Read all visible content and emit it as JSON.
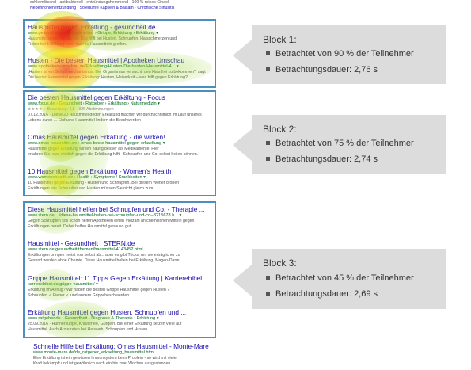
{
  "serp": {
    "top_snippet": [
      "schleimlösend · antibakteriell · entzündungshemmend · 100 % reines Cineol",
      "Nebenhöhlenentzündung · Soledum® Kapseln & Balsam · Chronische Sinusitis"
    ],
    "block1": [
      {
        "title": "Hausmittel gegen Erkältung - gesundheit.de",
        "url": "www.gesundheit.de › Krankheiten › Grippe, Erkältung › Erkältung",
        "desc": [
          "Hausmittel gegen Erkältung: Das hilft bei Husten, Schnupfen, Halsschmerzen und",
          "Fieber bei Erkältung kann man zu Hausmitteln greifen."
        ]
      },
      {
        "title": "Husten - Die besten Hausmittel | Apotheken Umschau",
        "url": "www.apotheken-umschau.de/Erkaeltung/Husten-Die-besten-Hausmittel-4...",
        "desc": [
          "„Husten ist ein Schutzmechanismus: Der Organismus versucht, den Hals frei zu bekommen\", sagt",
          "Die besten Hausmittel gegen Erkältung: Husten, Heiserkeit – was hilft gegen Erkältung?"
        ]
      }
    ],
    "block2": [
      {
        "title": "Die besten Hausmittel gegen Erkältung - Focus",
        "url": "www.focus.de › Gesundheit › Ratgeber › Erkältung › Naturmedizin",
        "meta": "★★★★☆ Bewertung: 4,5 · 326 Abstimmungen",
        "desc": [
          "07.12.2016 · Diese 20 Hausmittel gegen Erkältung machen wir durchschnittlich im Lauf unseres",
          "Lebens durch ... Einfache Hausmittel lindern die Beschwerden"
        ]
      },
      {
        "title": "Omas Hausmittel gegen Erkältung - die wirken!",
        "url": "www.omas-hausmittel.de › omas-beste-hausmittel-gegen-erkaeltung",
        "desc": [
          "Hausmittel gegen Erkältung wirken häufig besser als Medikamente. Hier",
          "erfahren Sie, was wirklich gegen die Erkältung hilft - Schnupfen und Co. selbst heilen können."
        ]
      },
      {
        "title": "10 Hausmittel gegen Erkältung - Women's Health",
        "url": "www.womenshealth.de › Health › Symptome / Krankheiten",
        "desc": [
          "10 Hausmittel gegen Erkältung - Husten und Schnupfen. Bei diesem Wetter drohen",
          "Erkältungen wie Schnupfen und Husten müssen Sie nicht gleich zum ..."
        ]
      }
    ],
    "block3": [
      {
        "title": "Diese Hausmittel helfen bei Schnupfen und Co. - Therapie ...",
        "url": "www.stern.de/.../diese-hausmittel-helfen-bei-schnupfen-und-co--3215678.h...",
        "desc": [
          "Gegen Schnupfen soll schon helfen Apotheken einen Vielzahl an chemischen Mitteln gegen",
          "Erkältungen bereit. Dabei helfen Hausmittel genauso gut."
        ]
      },
      {
        "title": "Hausmittel - Gesundheit | STERN.de",
        "url": "www.stern.de/gesundheit/themen/hausmittel-4143452.html",
        "desc": [
          "Erkältungen bringen meist von selbst ab... aber es gibt Tricks, um sie erträglicher zu",
          "Gesund werden ohne Chemie. Diese Hausmittel helfen bei Erkältung, Magen-Darm ..."
        ]
      },
      {
        "title": "Grippe Hausmittel: 11 Tipps Gegen Erkältung | Karrierebibel ...",
        "url": "karrierebibel.de/grippe-hausmittel/",
        "desc": [
          "Erkältung im Anflug? Wir haben die besten Grippe Hausmittel gegen Husten ✓",
          "Schnupfen ✓ Fieber ✓ und andere Grippebeschwerden"
        ]
      },
      {
        "title": "Erkältung Hausmittel gegen Husten, Schnupfen und ...",
        "url": "www.ratgeber.de › Gesundheit › Diagnose & Therapie › Erkältung",
        "desc": [
          "25.09.2016 · Hühnersuppe, Kräutertee, Gurgeln. Bei einer Erkältung setzen viele auf",
          "Hausmittel. Auch Ärzte raten bei Halsweh, Schnupfen und Husten ..."
        ]
      }
    ],
    "after": {
      "title": "Schnelle Hilfe bei Erkältung: Omas Hausmittel - Monte-Mare",
      "url": "www.monte-mare.de/de_ratgeber_erkaeltung_hausmittel.html",
      "desc": [
        "Eine Erkältung ist ein gewissen Immunsystem beim Problem - so wird mit vieler",
        "Kraft bekämpft und ist gewöhnlich nach ein bis zwei Wochen ausgestanden."
      ]
    }
  },
  "callouts": [
    {
      "title": "Block 1:",
      "items": [
        "Betrachtet von 90 % der Teilnehmer",
        "Betrachtungsdauer: 2,76 s"
      ]
    },
    {
      "title": "Block 2:",
      "items": [
        "Betrachtet von 75 % der Teilnehmer",
        "Betrachtungsdauer: 2,74 s"
      ]
    },
    {
      "title": "Block 3:",
      "items": [
        "Betrachtet von 45 % der Teilnehmer",
        "Betrachtungsdauer: 2,69 s"
      ]
    }
  ],
  "colors": {
    "block_border": "#4a8fc0",
    "callout_bg": "#dcdcdc",
    "link": "#1a0dab",
    "url": "#006621"
  }
}
